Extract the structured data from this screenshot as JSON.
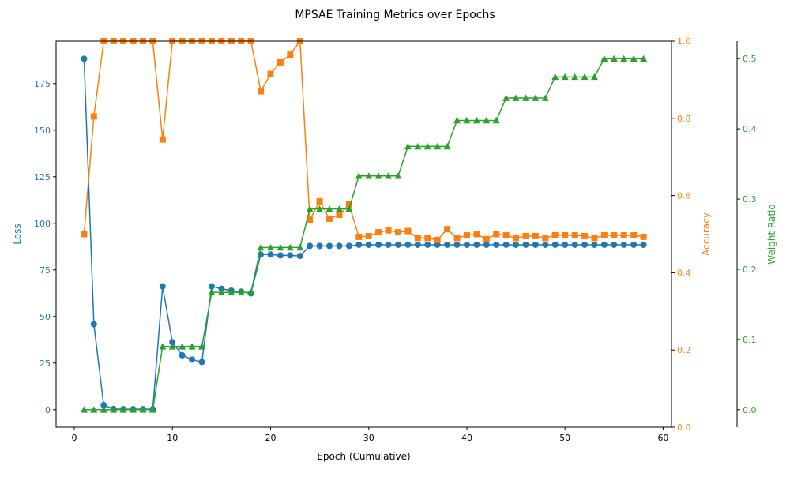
{
  "chart_data": {
    "type": "line",
    "title": "MPSAE Training Metrics over Epochs",
    "xlabel": "Epoch (Cumulative)",
    "xlim": [
      -1.85,
      60.85
    ],
    "xticks": [
      0,
      10,
      20,
      30,
      40,
      50,
      60
    ],
    "x": [
      1,
      2,
      3,
      4,
      5,
      6,
      7,
      8,
      9,
      10,
      11,
      12,
      13,
      14,
      15,
      16,
      17,
      18,
      19,
      20,
      21,
      22,
      23,
      24,
      25,
      26,
      27,
      28,
      29,
      30,
      31,
      32,
      33,
      34,
      35,
      36,
      37,
      38,
      39,
      40,
      41,
      42,
      43,
      44,
      45,
      46,
      47,
      48,
      49,
      50,
      51,
      52,
      53,
      54,
      55,
      56,
      57,
      58
    ],
    "axes": [
      {
        "id": "loss",
        "label": "Loss",
        "side": "left",
        "color": "#1f77b4",
        "ylim": [
          -9.4,
          197.8
        ],
        "ticks": [
          0,
          25,
          50,
          75,
          100,
          125,
          150,
          175
        ],
        "tick_decimals": 0
      },
      {
        "id": "accuracy",
        "label": "Accuracy",
        "side": "right",
        "color": "#ff7f0e",
        "ylim": [
          0.0,
          1.0
        ],
        "ticks": [
          0.0,
          0.2,
          0.4,
          0.6,
          0.8,
          1.0
        ],
        "tick_decimals": 1
      },
      {
        "id": "weight_ratio",
        "label": "Weight Ratio",
        "side": "right-offset",
        "color": "#2ca02c",
        "ylim": [
          -0.025,
          0.525
        ],
        "ticks": [
          0.0,
          0.1,
          0.2,
          0.3,
          0.4,
          0.5
        ],
        "tick_decimals": 1
      }
    ],
    "series": [
      {
        "axis": "loss",
        "color": "#1f77b4",
        "marker": "circle",
        "values": [
          188.3,
          45.9,
          2.5,
          0.4,
          0.3,
          0.3,
          0.3,
          0.3,
          66.2,
          36.2,
          29.2,
          26.9,
          25.6,
          66.2,
          64.9,
          63.9,
          63.4,
          62.4,
          83.3,
          83.3,
          82.8,
          82.8,
          82.5,
          87.9,
          87.9,
          87.9,
          87.9,
          87.9,
          88.5,
          88.5,
          88.5,
          88.5,
          88.5,
          88.5,
          88.5,
          88.5,
          88.5,
          88.5,
          88.5,
          88.5,
          88.5,
          88.5,
          88.5,
          88.5,
          88.5,
          88.5,
          88.5,
          88.5,
          88.5,
          88.5,
          88.5,
          88.5,
          88.5,
          88.5,
          88.5,
          88.5,
          88.5,
          88.5
        ]
      },
      {
        "axis": "accuracy",
        "color": "#ff7f0e",
        "marker": "square",
        "values": [
          0.5,
          0.805,
          1.0,
          1.0,
          1.0,
          1.0,
          1.0,
          1.0,
          0.745,
          1.0,
          1.0,
          1.0,
          1.0,
          1.0,
          1.0,
          1.0,
          1.0,
          1.0,
          0.87,
          0.915,
          0.945,
          0.965,
          1.0,
          0.537,
          0.585,
          0.54,
          0.55,
          0.577,
          0.493,
          0.495,
          0.505,
          0.51,
          0.505,
          0.508,
          0.49,
          0.49,
          0.485,
          0.513,
          0.49,
          0.497,
          0.5,
          0.487,
          0.5,
          0.497,
          0.49,
          0.495,
          0.495,
          0.49,
          0.497,
          0.497,
          0.497,
          0.495,
          0.49,
          0.497,
          0.497,
          0.497,
          0.497,
          0.493
        ]
      },
      {
        "axis": "weight_ratio",
        "color": "#2ca02c",
        "marker": "triangle",
        "values": [
          0.0,
          0.0,
          0.0,
          0.0,
          0.0,
          0.0,
          0.0,
          0.0,
          0.09,
          0.09,
          0.09,
          0.09,
          0.09,
          0.167,
          0.167,
          0.167,
          0.167,
          0.167,
          0.231,
          0.231,
          0.231,
          0.231,
          0.231,
          0.286,
          0.286,
          0.286,
          0.286,
          0.286,
          0.333,
          0.333,
          0.333,
          0.333,
          0.333,
          0.375,
          0.375,
          0.375,
          0.375,
          0.375,
          0.412,
          0.412,
          0.412,
          0.412,
          0.412,
          0.444,
          0.444,
          0.444,
          0.444,
          0.444,
          0.474,
          0.474,
          0.474,
          0.474,
          0.474,
          0.5,
          0.5,
          0.5,
          0.5,
          0.5
        ]
      }
    ],
    "grid": false,
    "legend": "none"
  }
}
